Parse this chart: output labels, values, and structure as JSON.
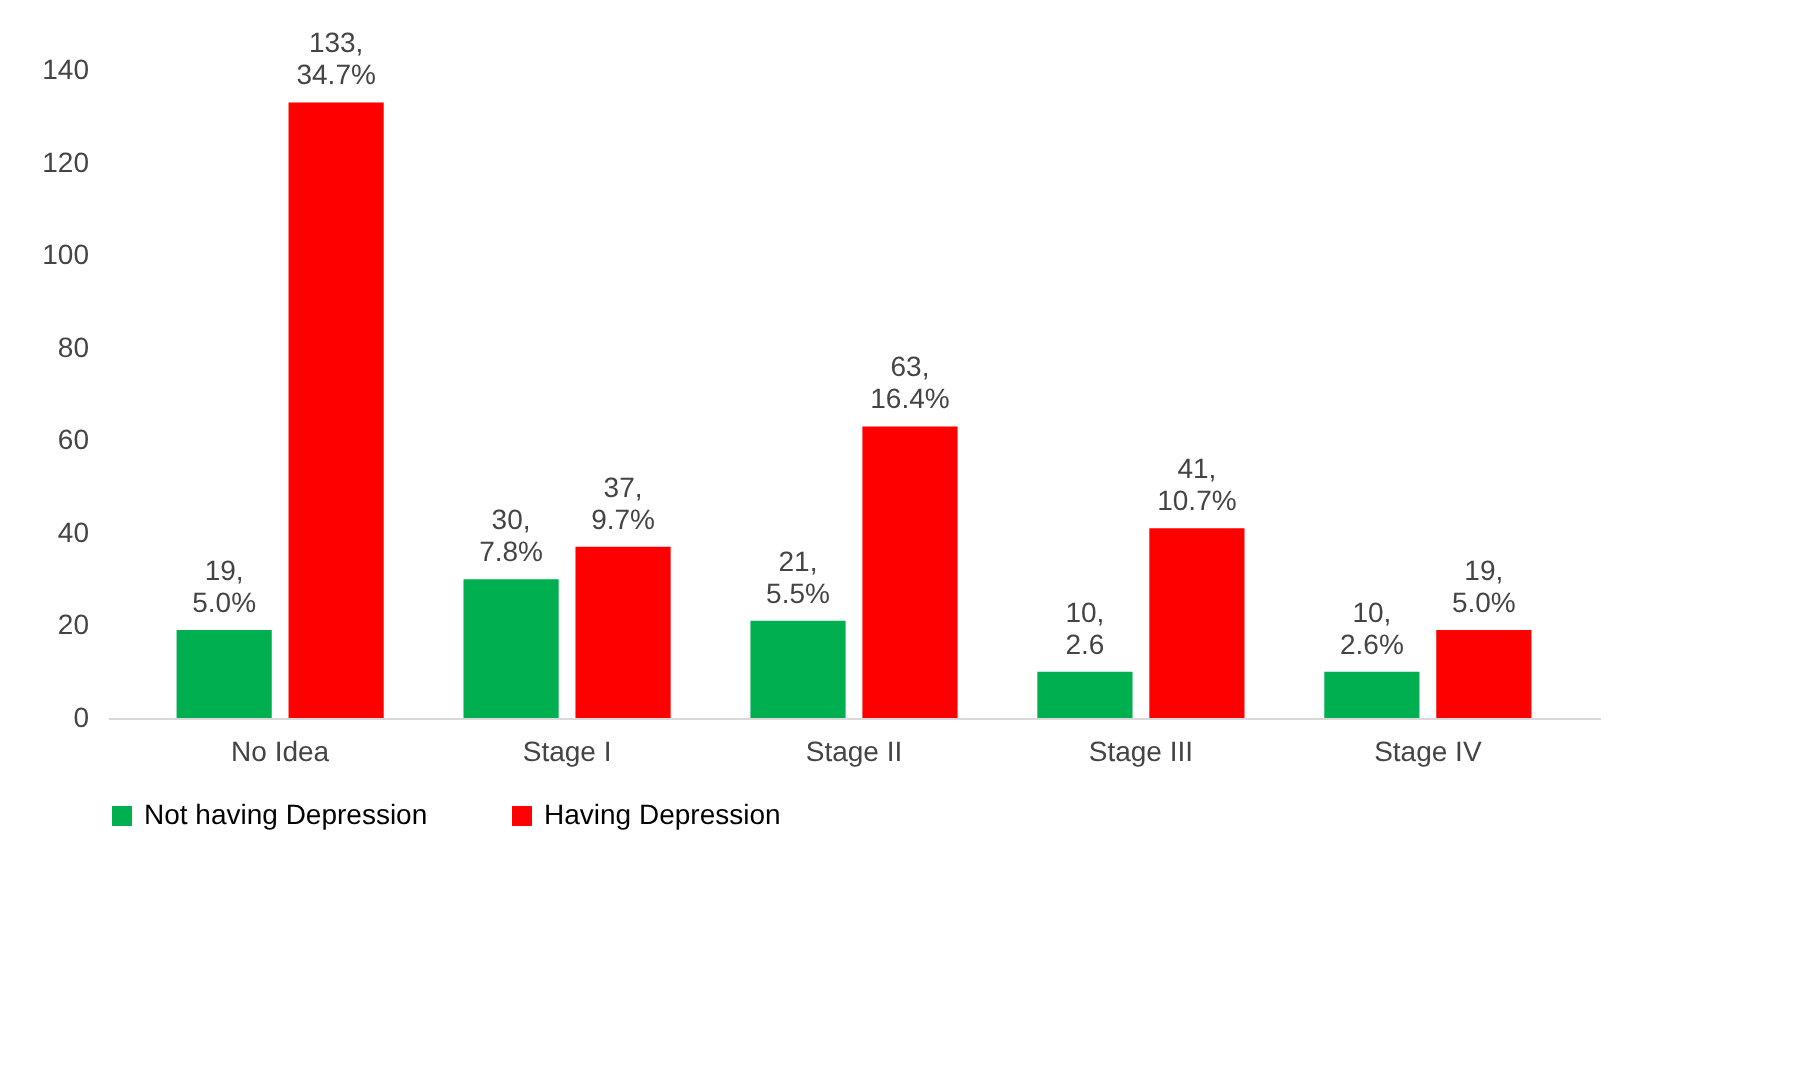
{
  "chart_data": {
    "type": "bar",
    "categories": [
      "No Idea",
      "Stage I",
      "Stage II",
      "Stage III",
      "Stage IV"
    ],
    "series": [
      {
        "name": "Not having Depression",
        "color": "#00b050",
        "values": [
          19,
          30,
          21,
          10,
          10
        ],
        "value_labels": [
          "19,\n5.0%",
          "30,\n7.8%",
          "21,\n5.5%",
          "10,\n2.6",
          "10,\n2.6%"
        ]
      },
      {
        "name": "Having Depression",
        "color": "#ff0000",
        "values": [
          133,
          37,
          63,
          41,
          19
        ],
        "value_labels": [
          "133,\n34.7%",
          "37,\n9.7%",
          "63,\n16.4%",
          "41,\n10.7%",
          "19,\n5.0%"
        ]
      }
    ],
    "ylim": [
      0,
      140
    ],
    "yticks": [
      0,
      20,
      40,
      60,
      80,
      100,
      120,
      140
    ],
    "grid": false,
    "legend": "bottom"
  }
}
